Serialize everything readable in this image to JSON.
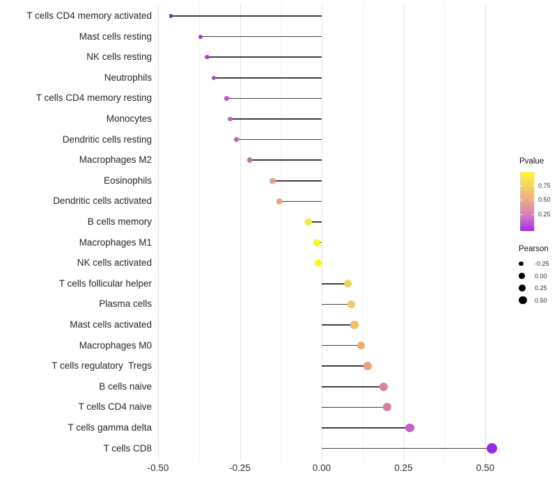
{
  "chart_data": {
    "type": "scatter",
    "subtype": "lollipop",
    "orientation": "horizontal",
    "title": "",
    "xlabel": "",
    "ylabel": "",
    "x_axis": {
      "range": [
        -0.51,
        0.57
      ],
      "major_ticks": [
        -0.5,
        -0.25,
        0,
        0.25,
        0.5
      ],
      "tick_labels": [
        "-0.50",
        "-0.25",
        "0.00",
        "0.25",
        "0.50"
      ],
      "minor_gridlines": [
        -0.375,
        -0.125,
        0.125,
        0.375
      ]
    },
    "baseline": 0,
    "grid": "vertical-only",
    "series": [
      {
        "label": "T cells CD4 memory activated",
        "pearson": -0.46,
        "dot_color": "#7a2be2"
      },
      {
        "label": "Mast cells resting",
        "pearson": -0.37,
        "dot_color": "#a73ad9"
      },
      {
        "label": "NK cells resting",
        "pearson": -0.35,
        "dot_color": "#ac41d6"
      },
      {
        "label": "Neutrophils",
        "pearson": -0.33,
        "dot_color": "#b24ad1"
      },
      {
        "label": "T cells CD4 memory resting",
        "pearson": -0.29,
        "dot_color": "#bc54cb"
      },
      {
        "label": "Monocytes",
        "pearson": -0.28,
        "dot_color": "#c05ac6"
      },
      {
        "label": "Dendritic cells resting",
        "pearson": -0.26,
        "dot_color": "#c460c0"
      },
      {
        "label": "Macrophages M2",
        "pearson": -0.22,
        "dot_color": "#cc6bb3"
      },
      {
        "label": "Eosinophils",
        "pearson": -0.15,
        "dot_color": "#e89c86"
      },
      {
        "label": "Dendritic cells activated",
        "pearson": -0.13,
        "dot_color": "#eaa57e"
      },
      {
        "label": "B cells memory",
        "pearson": -0.04,
        "dot_color": "#f2ea3d"
      },
      {
        "label": "Macrophages M1",
        "pearson": -0.015,
        "dot_color": "#f9f611"
      },
      {
        "label": "NK cells activated",
        "pearson": -0.01,
        "dot_color": "#f9f611"
      },
      {
        "label": "T cells follicular helper",
        "pearson": 0.08,
        "dot_color": "#f2ce5d"
      },
      {
        "label": "Plasma cells",
        "pearson": 0.09,
        "dot_color": "#f1c75f"
      },
      {
        "label": "Mast cells activated",
        "pearson": 0.1,
        "dot_color": "#efbf62"
      },
      {
        "label": "Macrophages M0",
        "pearson": 0.12,
        "dot_color": "#ecad6f"
      },
      {
        "label": "T cells regulatory  Tregs",
        "pearson": 0.14,
        "dot_color": "#e9a17c"
      },
      {
        "label": "B cells naive",
        "pearson": 0.19,
        "dot_color": "#dc80a1"
      },
      {
        "label": "T cells CD4 naive",
        "pearson": 0.2,
        "dot_color": "#db7ea3"
      },
      {
        "label": "T cells gamma delta",
        "pearson": 0.27,
        "dot_color": "#c760cf"
      },
      {
        "label": "T cells CD8",
        "pearson": 0.52,
        "dot_color": "#9929e8"
      }
    ],
    "legends": {
      "pvalue": {
        "title": "Pvalue",
        "ticks": [
          "0.75",
          "0.50",
          "0.25"
        ],
        "gradient_stops": [
          {
            "color": "#fbf93d",
            "pos": 0
          },
          {
            "color": "#f4d05f",
            "pos": 25
          },
          {
            "color": "#eba68c",
            "pos": 50
          },
          {
            "color": "#d678c4",
            "pos": 75
          },
          {
            "color": "#a62af2",
            "pos": 100
          }
        ]
      },
      "pearson": {
        "title": "Pearson",
        "labels": [
          "-0.25",
          "0.00",
          "0.25",
          "0.50"
        ]
      }
    }
  },
  "colors": {
    "background": "#ffffff",
    "grid_major": "#e3e3e3",
    "grid_minor": "#f2f2f2",
    "stem": "#3d3d3d",
    "axis_text": "#303030"
  }
}
